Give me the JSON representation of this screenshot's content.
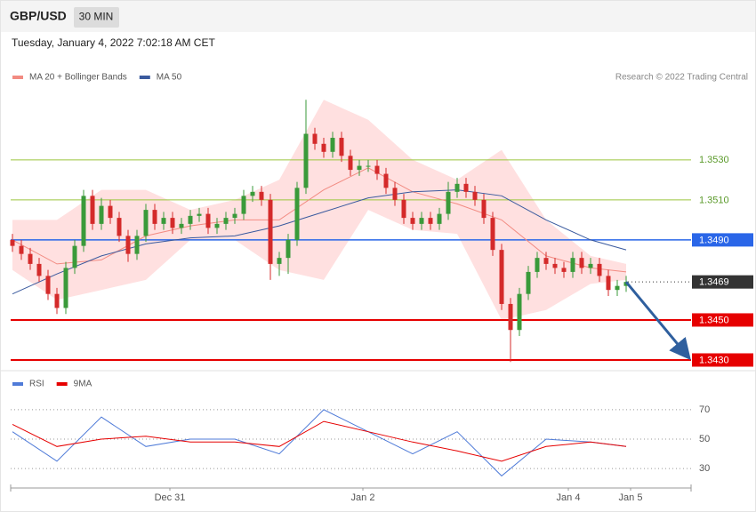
{
  "chart_data": [
    {
      "type": "candlestick",
      "title": "GBP/USD",
      "timeframe": "30 MIN",
      "subtitle": "Tuesday, January 4, 2022 7:02:18 AM CET",
      "credit": "Research © 2022 Trading Central",
      "up_color": "#3a9a3a",
      "down_color": "#d42a2a",
      "xlim": [
        -0.2,
        76.3
      ],
      "ylim": [
        1.3428,
        1.3565
      ],
      "open": [
        1.349,
        1.3487,
        1.3483,
        1.3478,
        1.3472,
        1.3463,
        1.3456,
        1.3476,
        1.3487,
        1.3512,
        1.3498,
        1.3507,
        1.3501,
        1.3492,
        1.3483,
        1.3492,
        1.3505,
        1.3498,
        1.3501,
        1.3496,
        1.3498,
        1.3502,
        1.3503,
        1.3496,
        1.3498,
        1.3501,
        1.3503,
        1.3512,
        1.3514,
        1.351,
        1.3478,
        1.3481,
        1.349,
        1.3516,
        1.3543,
        1.3538,
        1.3534,
        1.3541,
        1.3532,
        1.3525,
        1.3527,
        1.3527,
        1.3523,
        1.3516,
        1.351,
        1.3501,
        1.3498,
        1.3501,
        1.3498,
        1.3503,
        1.3514,
        1.3518,
        1.3514,
        1.351,
        1.3501,
        1.3485,
        1.3458,
        1.3445,
        1.3463,
        1.3474,
        1.3481,
        1.3478,
        1.3476,
        1.3474,
        1.3481,
        1.3476,
        1.3478,
        1.3472,
        1.3465,
        1.3467
      ],
      "high": [
        1.3493,
        1.349,
        1.3486,
        1.3481,
        1.3475,
        1.3466,
        1.3479,
        1.349,
        1.3515,
        1.3515,
        1.3511,
        1.351,
        1.3504,
        1.3495,
        1.3495,
        1.3508,
        1.3508,
        1.3504,
        1.3504,
        1.3501,
        1.3505,
        1.3506,
        1.3506,
        1.3501,
        1.3504,
        1.3506,
        1.3515,
        1.3517,
        1.3517,
        1.3513,
        1.3484,
        1.3493,
        1.3519,
        1.356,
        1.3546,
        1.3541,
        1.3544,
        1.3544,
        1.3535,
        1.353,
        1.353,
        1.353,
        1.3526,
        1.3519,
        1.3513,
        1.3504,
        1.3504,
        1.3504,
        1.3506,
        1.3519,
        1.3521,
        1.3521,
        1.3517,
        1.3513,
        1.3504,
        1.3488,
        1.3461,
        1.3466,
        1.3477,
        1.3484,
        1.3484,
        1.3481,
        1.3479,
        1.3484,
        1.3484,
        1.3481,
        1.3481,
        1.3475,
        1.347,
        1.3472
      ],
      "low": [
        1.3484,
        1.348,
        1.3475,
        1.3469,
        1.346,
        1.3453,
        1.3453,
        1.3473,
        1.3484,
        1.3495,
        1.3495,
        1.3498,
        1.3489,
        1.3479,
        1.348,
        1.3489,
        1.3495,
        1.3495,
        1.3493,
        1.3493,
        1.3495,
        1.3499,
        1.3493,
        1.3493,
        1.3495,
        1.3498,
        1.35,
        1.3509,
        1.3507,
        1.347,
        1.3472,
        1.3473,
        1.3487,
        1.3513,
        1.3535,
        1.3531,
        1.3531,
        1.3529,
        1.3522,
        1.3522,
        1.3524,
        1.352,
        1.3513,
        1.3507,
        1.3498,
        1.3495,
        1.3495,
        1.3495,
        1.3495,
        1.35,
        1.3511,
        1.3511,
        1.3507,
        1.3498,
        1.3482,
        1.3455,
        1.3429,
        1.3442,
        1.346,
        1.3471,
        1.3475,
        1.3473,
        1.3471,
        1.3471,
        1.3473,
        1.3473,
        1.3469,
        1.3462,
        1.3462,
        1.3464
      ],
      "close": [
        1.3487,
        1.3483,
        1.3478,
        1.3472,
        1.3463,
        1.3456,
        1.3476,
        1.3487,
        1.3512,
        1.3498,
        1.3507,
        1.3501,
        1.3492,
        1.3483,
        1.3492,
        1.3505,
        1.3498,
        1.3501,
        1.3496,
        1.3498,
        1.3502,
        1.3503,
        1.3496,
        1.3498,
        1.3501,
        1.3503,
        1.3512,
        1.3514,
        1.351,
        1.3478,
        1.3481,
        1.349,
        1.3516,
        1.3543,
        1.3538,
        1.3534,
        1.3541,
        1.3532,
        1.3525,
        1.3527,
        1.3527,
        1.3523,
        1.3516,
        1.351,
        1.3501,
        1.3498,
        1.3501,
        1.3498,
        1.3503,
        1.3514,
        1.3518,
        1.3514,
        1.351,
        1.3501,
        1.3485,
        1.3458,
        1.3445,
        1.3463,
        1.3474,
        1.3481,
        1.3478,
        1.3476,
        1.3474,
        1.3481,
        1.3476,
        1.3478,
        1.3472,
        1.3465,
        1.3467,
        1.3469
      ],
      "series": [
        {
          "name": "MA 20 + Bollinger Bands",
          "color": "#f28b82",
          "band_color": "#ffe0e0",
          "x": [
            0,
            5,
            10,
            15,
            20,
            25,
            30,
            35,
            40,
            45,
            50,
            55,
            60,
            65,
            69
          ],
          "values": [
            1.349,
            1.3478,
            1.348,
            1.3492,
            1.3497,
            1.35,
            1.35,
            1.3515,
            1.3526,
            1.3514,
            1.3508,
            1.35,
            1.3482,
            1.3476,
            1.3474
          ],
          "upper": [
            1.35,
            1.35,
            1.3515,
            1.3515,
            1.3505,
            1.351,
            1.352,
            1.356,
            1.355,
            1.353,
            1.352,
            1.3535,
            1.35,
            1.3482,
            1.3478
          ],
          "lower": [
            1.3475,
            1.346,
            1.3465,
            1.347,
            1.349,
            1.349,
            1.3475,
            1.347,
            1.3505,
            1.3495,
            1.3493,
            1.345,
            1.3455,
            1.3468,
            1.347
          ]
        },
        {
          "name": "MA 50",
          "color": "#3a5a9e",
          "x": [
            0,
            5,
            10,
            15,
            20,
            25,
            30,
            35,
            40,
            45,
            50,
            55,
            60,
            65,
            69
          ],
          "values": [
            1.3463,
            1.3473,
            1.3482,
            1.3488,
            1.3491,
            1.3492,
            1.3497,
            1.3504,
            1.3511,
            1.3514,
            1.3515,
            1.3512,
            1.35,
            1.349,
            1.3485
          ]
        }
      ],
      "levels": [
        {
          "value": 1.353,
          "label": "1.3530",
          "color": "#9bc53d",
          "boxed": false,
          "width": 1
        },
        {
          "value": 1.351,
          "label": "1.3510",
          "color": "#9bc53d",
          "boxed": false,
          "width": 1
        },
        {
          "value": 1.349,
          "label": "1.3490",
          "color": "#2a66e8",
          "boxed": true,
          "width": 1.5
        },
        {
          "value": 1.3469,
          "label": "1.3469",
          "color": "#333333",
          "boxed": true,
          "width": 0
        },
        {
          "value": 1.345,
          "label": "1.3450",
          "color": "#e60000",
          "boxed": true,
          "width": 2
        },
        {
          "value": 1.343,
          "label": "1.3430",
          "color": "#e60000",
          "boxed": true,
          "width": 2
        }
      ],
      "forecast": {
        "x": [
          69,
          75.9
        ],
        "values": [
          1.3469,
          1.3432
        ],
        "color": "#2f5f9e"
      }
    },
    {
      "type": "line",
      "xlim": [
        -0.2,
        76.3
      ],
      "ylim": [
        18,
        82
      ],
      "yticks": [
        30,
        50,
        70
      ],
      "xticks": [
        {
          "value": 17.7,
          "label": "Dec 31"
        },
        {
          "value": 39.4,
          "label": "Jan 2"
        },
        {
          "value": 62.5,
          "label": "Jan 4"
        },
        {
          "value": 69.5,
          "label": "Jan 5"
        }
      ],
      "series": [
        {
          "name": "RSI",
          "color": "#4f7bd8",
          "x": [
            0,
            5,
            10,
            15,
            20,
            25,
            30,
            35,
            40,
            45,
            50,
            55,
            60,
            65,
            69
          ],
          "values": [
            55,
            35,
            65,
            45,
            50,
            50,
            40,
            70,
            55,
            40,
            55,
            25,
            50,
            48,
            45
          ]
        },
        {
          "name": "9MA",
          "color": "#e60000",
          "x": [
            0,
            5,
            10,
            15,
            20,
            25,
            30,
            35,
            40,
            45,
            50,
            55,
            60,
            65,
            69
          ],
          "values": [
            60,
            45,
            50,
            52,
            48,
            48,
            45,
            62,
            55,
            48,
            42,
            35,
            45,
            48,
            45
          ]
        }
      ]
    }
  ]
}
